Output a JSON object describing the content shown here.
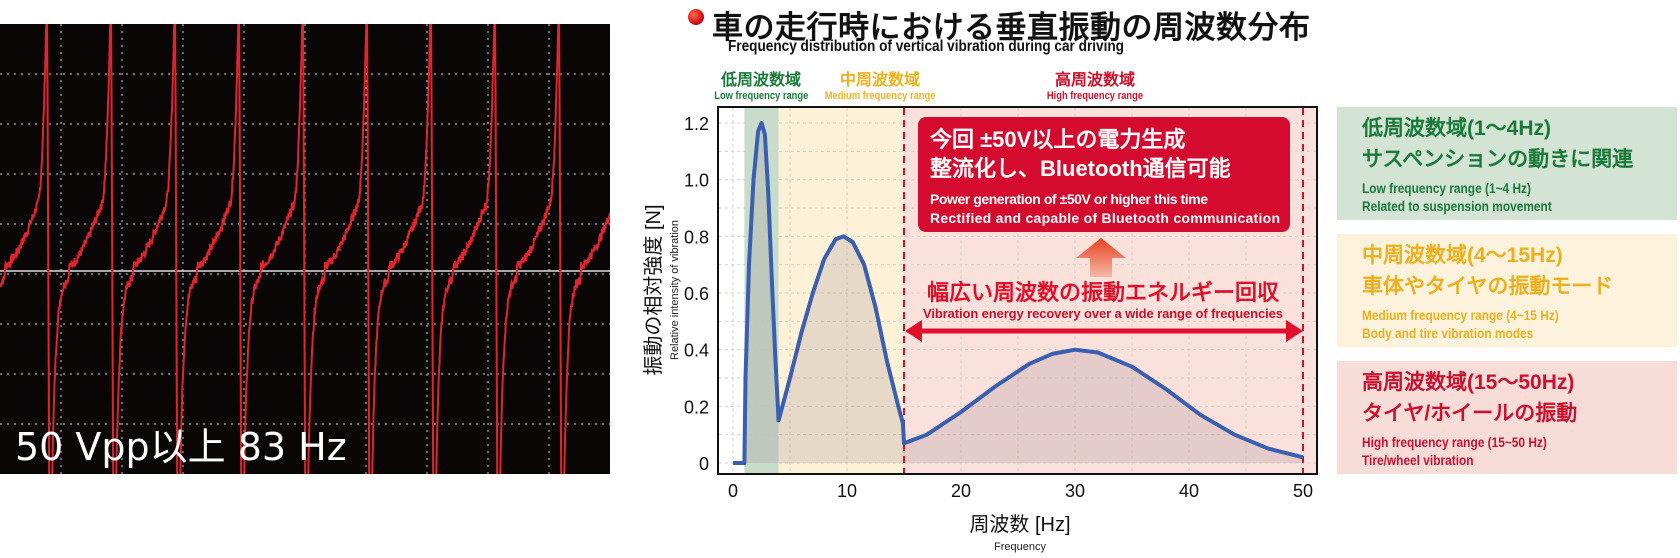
{
  "oscilloscope": {
    "label": "50 Vpp以上 83 Hz",
    "trace_color": "#e0262c"
  },
  "header": {
    "title": "車の走行時における垂直振動の周波数分布",
    "subtitle": "Frequency distribution of vertical vibration during car driving"
  },
  "ranges": [
    {
      "jp": "低周波数域",
      "en": "Low frequency range",
      "color": "#1a7a3a",
      "band_color": "#c9dccb",
      "from": 1,
      "to": 4
    },
    {
      "jp": "中周波数域",
      "en": "Medium frequency range",
      "color": "#f0b020",
      "band_color": "#fdf1d8",
      "from": 4,
      "to": 15
    },
    {
      "jp": "高周波数域",
      "en": "High frequency range",
      "color": "#d0102a",
      "band_color": "#fbe1dc",
      "from": 15,
      "to": 50
    }
  ],
  "callout": {
    "line1": "今回 ±50V以上の電力生成",
    "line2": "整流化し、Bluetooth通信可能",
    "en1": "Power generation of ±50V or higher this time",
    "en2": "Rectified and capable of Bluetooth communication",
    "color": "#d40a2e"
  },
  "recovery": {
    "jp": "幅広い周波数の振動エネルギー回収",
    "en": "Vibration energy recovery over a wide range of frequencies"
  },
  "legend_boxes": [
    {
      "h1": "低周波数域(1〜4Hz)",
      "h2": "サスペンションの動きに関連",
      "e1": "Low frequency range (1~4 Hz)",
      "e2": "Related to suspension movement",
      "color": "#1a7a3a",
      "bg": "#d3e3d4"
    },
    {
      "h1": "中周波数域(4〜15Hz)",
      "h2": "車体やタイヤの振動モード",
      "e1": "Medium frequency range (4~15 Hz)",
      "e2": "Body and tire vibration modes",
      "color": "#eeae1e",
      "bg": "#fdf2db"
    },
    {
      "h1": "高周波数域(15〜50Hz)",
      "h2": "タイヤ/ホイールの振動",
      "e1": "High frequency range (15~50 Hz)",
      "e2": "Tire/wheel vibration",
      "color": "#cc1030",
      "bg": "#f8dcd8"
    }
  ],
  "chart_data": {
    "type": "line",
    "xlabel": "周波数 [Hz]",
    "xlabel_en": "Frequency",
    "ylabel": "振動の相対強度 [N]",
    "ylabel_en": "Relative intensity of vibration",
    "xlim": [
      0,
      50
    ],
    "ylim": [
      0,
      1.25
    ],
    "xticks": [
      "0",
      "10",
      "20",
      "30",
      "40",
      "50"
    ],
    "yticks": [
      "0",
      "0.2",
      "0.4",
      "0.6",
      "0.8",
      "1.0",
      "1.2"
    ],
    "grid": true,
    "line_color": "#3a5fb0",
    "series": [
      {
        "x": [
          0,
          1,
          1.1,
          1.4,
          1.8,
          2.2,
          2.5,
          2.8,
          3.1,
          3.4,
          3.7,
          4,
          5,
          6,
          7,
          8,
          9,
          9.7,
          10.5,
          11.5,
          12.5,
          13.5,
          14.5,
          14.9,
          15,
          17,
          20,
          23,
          26,
          28,
          30,
          32,
          35,
          38,
          41,
          44,
          47,
          50
        ],
        "y": [
          0,
          0,
          0.3,
          0.7,
          1.0,
          1.17,
          1.2,
          1.16,
          0.95,
          0.65,
          0.38,
          0.15,
          0.3,
          0.46,
          0.6,
          0.72,
          0.79,
          0.8,
          0.78,
          0.7,
          0.55,
          0.36,
          0.2,
          0.14,
          0.07,
          0.1,
          0.18,
          0.27,
          0.35,
          0.385,
          0.4,
          0.39,
          0.34,
          0.26,
          0.17,
          0.1,
          0.05,
          0.02
        ]
      }
    ]
  }
}
